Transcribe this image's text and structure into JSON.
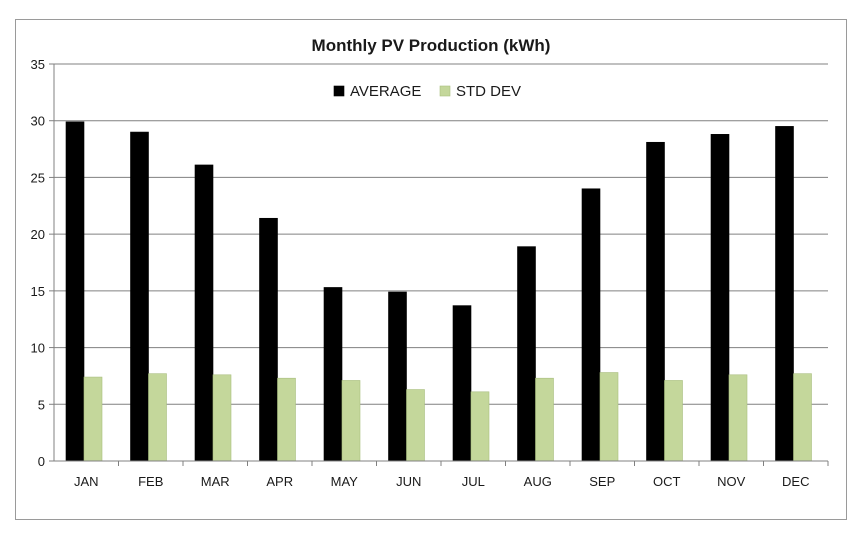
{
  "chart_data": {
    "type": "bar",
    "title": "Monthly PV Production (kWh)",
    "xlabel": "",
    "ylabel": "",
    "ylim": [
      0,
      35
    ],
    "yticks": [
      0,
      5,
      10,
      15,
      20,
      25,
      30,
      35
    ],
    "grid": true,
    "legend_position": "top-center",
    "categories": [
      "JAN",
      "FEB",
      "MAR",
      "APR",
      "MAY",
      "JUN",
      "JUL",
      "AUG",
      "SEP",
      "OCT",
      "NOV",
      "DEC"
    ],
    "series": [
      {
        "name": "AVERAGE",
        "color": "#000000",
        "values": [
          29.9,
          29.0,
          26.1,
          21.4,
          15.3,
          14.9,
          13.7,
          18.9,
          24.0,
          28.1,
          28.8,
          29.5
        ]
      },
      {
        "name": "STD DEV",
        "color": "#c4d79b",
        "values": [
          7.4,
          7.7,
          7.6,
          7.3,
          7.1,
          6.3,
          6.1,
          7.3,
          7.8,
          7.1,
          7.6,
          7.7
        ]
      }
    ]
  }
}
